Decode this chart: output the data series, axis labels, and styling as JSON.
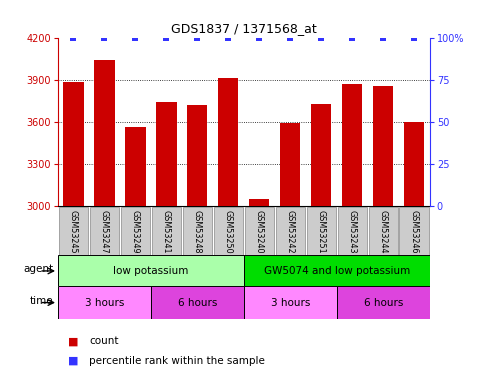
{
  "title": "GDS1837 / 1371568_at",
  "samples": [
    "GSM53245",
    "GSM53247",
    "GSM53249",
    "GSM53241",
    "GSM53248",
    "GSM53250",
    "GSM53240",
    "GSM53242",
    "GSM53251",
    "GSM53243",
    "GSM53244",
    "GSM53246"
  ],
  "counts": [
    3880,
    4040,
    3560,
    3740,
    3720,
    3910,
    3050,
    3590,
    3730,
    3870,
    3855,
    3600
  ],
  "percentile_ranks": [
    100,
    100,
    100,
    100,
    100,
    100,
    100,
    100,
    100,
    100,
    100,
    100
  ],
  "ylim_left": [
    3000,
    4200
  ],
  "ylim_right": [
    0,
    100
  ],
  "yticks_left": [
    3000,
    3300,
    3600,
    3900,
    4200
  ],
  "yticks_right": [
    0,
    25,
    50,
    75,
    100
  ],
  "ytick_right_labels": [
    "0",
    "25",
    "50",
    "75",
    "100%"
  ],
  "bar_color": "#CC0000",
  "dot_color": "#3333FF",
  "bar_bottom": 3000,
  "agent_groups": [
    {
      "label": "low potassium",
      "start": 0,
      "end": 6,
      "color": "#AAFFAA"
    },
    {
      "label": "GW5074 and low potassium",
      "start": 6,
      "end": 12,
      "color": "#00DD00"
    }
  ],
  "time_groups": [
    {
      "label": "3 hours",
      "start": 0,
      "end": 3,
      "color": "#FF88FF"
    },
    {
      "label": "6 hours",
      "start": 3,
      "end": 6,
      "color": "#DD44DD"
    },
    {
      "label": "3 hours",
      "start": 6,
      "end": 9,
      "color": "#FF88FF"
    },
    {
      "label": "6 hours",
      "start": 9,
      "end": 12,
      "color": "#DD44DD"
    }
  ],
  "legend_count_color": "#CC0000",
  "legend_pct_color": "#3333FF",
  "sample_box_color": "#CCCCCC",
  "left_label_color": "#CC0000",
  "right_label_color": "#3333FF"
}
